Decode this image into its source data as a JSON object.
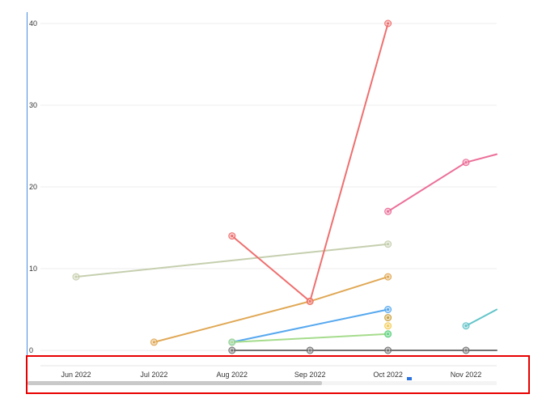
{
  "chart_data": {
    "type": "line",
    "x_categories": [
      "Jun 2022",
      "Jul 2022",
      "Aug 2022",
      "Sep 2022",
      "Oct 2022",
      "Nov 2022"
    ],
    "y_ticks": [
      0,
      10,
      20,
      30,
      40
    ],
    "ylim": [
      0,
      40
    ],
    "grid": true,
    "title": "",
    "xlabel": "",
    "ylabel": "",
    "series": [
      {
        "color": "#c5cfae",
        "points": [
          [
            "Jun 2022",
            9
          ],
          [
            "Oct 2022",
            13
          ]
        ]
      },
      {
        "color": "#e0a855",
        "points": [
          [
            "Jul 2022",
            1
          ],
          [
            "Sep 2022",
            6
          ],
          [
            "Oct 2022",
            9
          ]
        ]
      },
      {
        "color": "#ef6f6f",
        "points": [
          [
            "Aug 2022",
            14
          ],
          [
            "Sep 2022",
            6
          ],
          [
            "Oct 2022",
            40
          ]
        ]
      },
      {
        "color": "#56a8ef",
        "points": [
          [
            "Aug 2022",
            1
          ],
          [
            "Oct 2022",
            5
          ]
        ]
      },
      {
        "color": "#a5dc8c",
        "points": [
          [
            "Aug 2022",
            1
          ],
          [
            "Oct 2022",
            2
          ]
        ]
      },
      {
        "color": "#727272",
        "points": [
          [
            "Aug 2022",
            0
          ],
          [
            "Sep 2022",
            0
          ],
          [
            "Oct 2022",
            0
          ],
          [
            "Nov 2022",
            0
          ]
        ],
        "extends_right": true
      },
      {
        "color": "#ec6f98",
        "points": [
          [
            "Oct 2022",
            17
          ],
          [
            "Nov 2022",
            23
          ]
        ],
        "extends_right": true,
        "end_value": 24
      },
      {
        "color": "#62c4c9",
        "points": [
          [
            "Nov 2022",
            3
          ]
        ],
        "extends_right": true,
        "end_value": 5
      },
      {
        "color": "#c9a242",
        "points": [
          [
            "Oct 2022",
            4
          ]
        ]
      },
      {
        "color": "#f4cc56",
        "points": [
          [
            "Oct 2022",
            3
          ]
        ]
      },
      {
        "color": "#62d48a",
        "points": [
          [
            "Oct 2022",
            2
          ]
        ]
      }
    ]
  },
  "colors": {
    "grid": "#ededed",
    "highlight": "#e80000",
    "axis_accent": "#4a8fdf"
  }
}
